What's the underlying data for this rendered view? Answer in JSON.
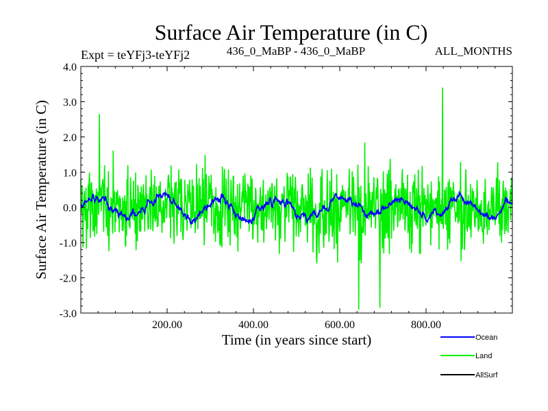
{
  "chart_data": {
    "type": "line",
    "title": "Surface Air Temperature (in C)",
    "subtitle_left": "Expt = teYFj3-teYFj2",
    "subtitle_center": "436_0_MaBP - 436_0_MaBP",
    "subtitle_right": "ALL_MONTHS",
    "xlabel": "Time (in years since start)",
    "ylabel": "Surface Air Temperature (in C)",
    "xlim": [
      0,
      1000
    ],
    "ylim": [
      -3.0,
      4.0
    ],
    "x_ticks": [
      200,
      400,
      600,
      800
    ],
    "x_tick_labels": [
      "200.00",
      "400.00",
      "600.00",
      "800.00"
    ],
    "y_ticks": [
      -3,
      -2,
      -1,
      0,
      1,
      2,
      3,
      4
    ],
    "y_tick_labels": [
      "-3.0",
      "-2.0",
      "-1.0",
      "0.0",
      "1.0",
      "2.0",
      "3.0",
      "4.0"
    ],
    "legend_position": "bottom-right",
    "series": [
      {
        "name": "Ocean",
        "color": "#0000ff",
        "amplitude": 0.3,
        "range_observed": [
          -0.6,
          0.5
        ],
        "mean": 0.0
      },
      {
        "name": "Land",
        "color": "#00ee00",
        "amplitude": 1.5,
        "range_observed": [
          -2.9,
          3.4
        ],
        "mean": 0.0,
        "notable_points": [
          {
            "x": 838,
            "y": 3.4
          },
          {
            "x": 644,
            "y": -2.9
          },
          {
            "x": 693,
            "y": -2.85
          },
          {
            "x": 43,
            "y": 2.65
          }
        ]
      },
      {
        "name": "AllSurf",
        "color": "#000000",
        "amplitude": 0.5,
        "mean": 0.0
      }
    ]
  }
}
